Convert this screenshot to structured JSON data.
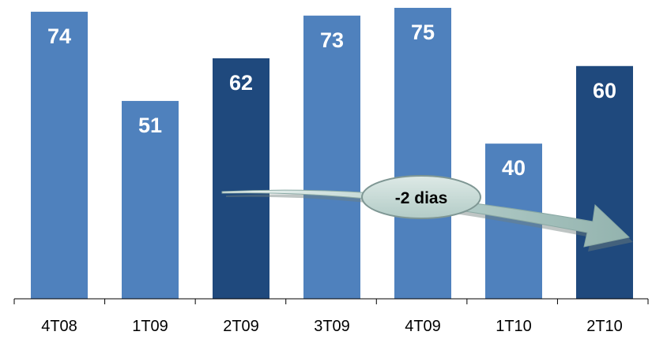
{
  "chart_data": {
    "type": "bar",
    "categories": [
      "4T08",
      "1T09",
      "2T09",
      "3T09",
      "4T09",
      "1T10",
      "2T10"
    ],
    "values": [
      74,
      51,
      62,
      73,
      75,
      40,
      60
    ],
    "highlighted": [
      false,
      false,
      true,
      false,
      false,
      false,
      true
    ],
    "ylim": [
      0,
      80
    ],
    "grid": false,
    "annotation": "-2 dias",
    "colors": {
      "bar": "#4f81bd",
      "bar_highlight": "#1f497d",
      "axis": "#000000",
      "arrow": "#a9c4c2",
      "badge": "#c5d9d5"
    }
  }
}
